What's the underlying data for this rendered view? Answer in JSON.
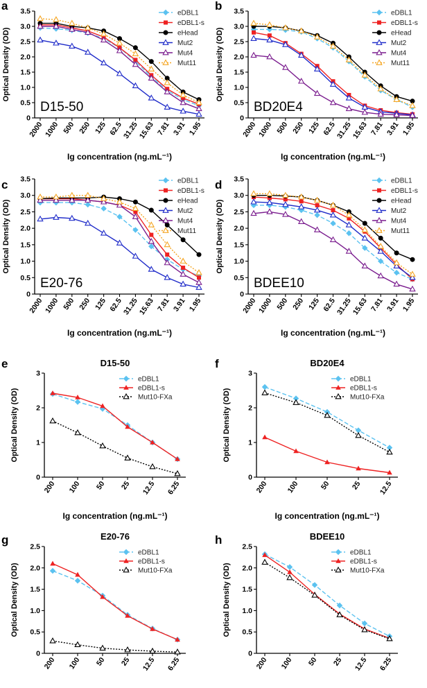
{
  "figure": {
    "panels": [
      {
        "letter": "a"
      },
      {
        "letter": "b"
      },
      {
        "letter": "c"
      },
      {
        "letter": "d"
      },
      {
        "letter": "e"
      },
      {
        "letter": "f"
      },
      {
        "letter": "g"
      },
      {
        "letter": "h"
      }
    ]
  },
  "colors": {
    "eDBL1": "#5bc2f0",
    "eDBL1-s": "#ee2222",
    "eHead": "#000000",
    "Mut2": "#1f2bc9",
    "Mut4": "#7a1c8e",
    "Mut11": "#f5a623",
    "Mut10-FXa": "#000000"
  },
  "chart_data": [
    {
      "panel": "a",
      "type": "line",
      "annotation": "D15-50",
      "categories": [
        "2000",
        "1000",
        "500",
        "250",
        "125",
        "62.5",
        "31.25",
        "15.63",
        "7.81",
        "3.91",
        "1.95"
      ],
      "xlabel": "Ig concentration (ng.mL⁻¹)",
      "ylabel": "Optical Density (OD)",
      "ylim": [
        0,
        3.5
      ],
      "yticks": [
        "0",
        "0.5",
        "1.0",
        "1.5",
        "2.0",
        "2.5",
        "3.0",
        "3.5"
      ],
      "legend_position": "top-right",
      "series": [
        {
          "name": "eDBL1",
          "marker": "diamond",
          "style": "dashed",
          "values": [
            2.95,
            2.92,
            2.87,
            2.78,
            2.6,
            2.3,
            1.85,
            1.35,
            0.9,
            0.6,
            0.4
          ]
        },
        {
          "name": "eDBL1-s",
          "marker": "square",
          "style": "solid",
          "values": [
            3.05,
            3.05,
            2.95,
            2.85,
            2.65,
            2.3,
            1.9,
            1.4,
            0.95,
            0.65,
            0.45
          ]
        },
        {
          "name": "eHead",
          "marker": "circle",
          "style": "solid",
          "values": [
            3.1,
            3.1,
            3.0,
            2.95,
            2.85,
            2.6,
            2.3,
            1.85,
            1.3,
            0.85,
            0.6
          ]
        },
        {
          "name": "Mut2",
          "marker": "triangle-open",
          "style": "solid",
          "values": [
            2.55,
            2.45,
            2.35,
            2.15,
            1.8,
            1.45,
            1.05,
            0.65,
            0.35,
            0.22,
            0.12
          ]
        },
        {
          "name": "Mut4",
          "marker": "triangle-open",
          "style": "solid",
          "values": [
            3.0,
            3.0,
            2.9,
            2.8,
            2.55,
            2.2,
            1.75,
            1.3,
            0.85,
            0.5,
            0.3
          ]
        },
        {
          "name": "Mut11",
          "marker": "triangle-open",
          "style": "dotted",
          "values": [
            3.25,
            3.22,
            3.1,
            2.95,
            2.75,
            2.45,
            2.1,
            1.6,
            1.15,
            0.75,
            0.5
          ]
        }
      ]
    },
    {
      "panel": "b",
      "type": "line",
      "annotation": "BD20E4",
      "categories": [
        "2000",
        "1000",
        "500",
        "250",
        "125",
        "62.5",
        "31.25",
        "15.63",
        "7.81",
        "3.91",
        "1.95"
      ],
      "xlabel": "Ig concentration (ng.mL⁻¹)",
      "ylabel": "Optical Density (OD)",
      "ylim": [
        0,
        3.5
      ],
      "yticks": [
        "0",
        "0.5",
        "1.0",
        "1.5",
        "2.0",
        "2.5",
        "3.0",
        "3.5"
      ],
      "legend_position": "top-right",
      "series": [
        {
          "name": "eDBL1",
          "marker": "diamond",
          "style": "dashed",
          "values": [
            2.9,
            2.9,
            2.88,
            2.82,
            2.6,
            2.3,
            1.85,
            1.35,
            0.9,
            0.6,
            0.35
          ]
        },
        {
          "name": "eDBL1-s",
          "marker": "square",
          "style": "solid",
          "values": [
            2.8,
            2.7,
            2.45,
            2.1,
            1.7,
            1.2,
            0.75,
            0.4,
            0.25,
            0.17,
            0.12
          ]
        },
        {
          "name": "eHead",
          "marker": "circle",
          "style": "solid",
          "values": [
            3.0,
            3.0,
            2.95,
            2.85,
            2.7,
            2.45,
            2.0,
            1.5,
            1.05,
            0.7,
            0.55
          ]
        },
        {
          "name": "Mut2",
          "marker": "triangle-open",
          "style": "solid",
          "values": [
            2.6,
            2.55,
            2.4,
            2.05,
            1.6,
            1.1,
            0.65,
            0.35,
            0.2,
            0.15,
            0.1
          ]
        },
        {
          "name": "Mut4",
          "marker": "triangle-open",
          "style": "solid",
          "values": [
            2.05,
            2.0,
            1.65,
            1.2,
            0.8,
            0.5,
            0.3,
            0.18,
            0.12,
            0.1,
            0.08
          ]
        },
        {
          "name": "Mut11",
          "marker": "triangle-open",
          "style": "dotted",
          "values": [
            3.1,
            3.05,
            2.95,
            2.85,
            2.65,
            2.35,
            1.9,
            1.4,
            0.95,
            0.6,
            0.4
          ]
        }
      ]
    },
    {
      "panel": "c",
      "type": "line",
      "annotation": "E20-76",
      "categories": [
        "2000",
        "1000",
        "500",
        "250",
        "125",
        "62.5",
        "31.25",
        "15.63",
        "7.81",
        "3.91",
        "1.95"
      ],
      "xlabel": "Ig concentration (ng.mL⁻¹)",
      "ylabel": "Optical Density (OD)",
      "ylim": [
        0,
        3.5
      ],
      "yticks": [
        "0",
        "0.5",
        "1.0",
        "1.5",
        "2.0",
        "2.5",
        "3.0",
        "3.5"
      ],
      "legend_position": "top-right",
      "series": [
        {
          "name": "eDBL1",
          "marker": "diamond",
          "style": "dashed",
          "values": [
            2.78,
            2.78,
            2.78,
            2.72,
            2.6,
            2.35,
            1.95,
            1.45,
            1.05,
            0.75,
            0.55
          ]
        },
        {
          "name": "eDBL1-s",
          "marker": "square",
          "style": "solid",
          "values": [
            2.9,
            2.9,
            2.9,
            2.85,
            2.8,
            2.7,
            2.5,
            1.8,
            1.2,
            0.8,
            0.5
          ]
        },
        {
          "name": "eHead",
          "marker": "circle",
          "style": "solid",
          "values": [
            2.9,
            2.92,
            2.92,
            2.92,
            2.95,
            2.9,
            2.8,
            2.55,
            2.1,
            1.65,
            1.2
          ]
        },
        {
          "name": "Mut2",
          "marker": "triangle-open",
          "style": "solid",
          "values": [
            2.28,
            2.33,
            2.3,
            2.15,
            1.85,
            1.55,
            1.15,
            0.75,
            0.5,
            0.3,
            0.2
          ]
        },
        {
          "name": "Mut4",
          "marker": "triangle-open",
          "style": "solid",
          "values": [
            2.85,
            2.85,
            2.85,
            2.85,
            2.8,
            2.7,
            2.35,
            1.6,
            0.95,
            0.6,
            0.35
          ]
        },
        {
          "name": "Mut11",
          "marker": "triangle-open",
          "style": "dotted",
          "values": [
            2.95,
            2.95,
            3.0,
            3.0,
            2.9,
            2.8,
            2.6,
            2.1,
            1.5,
            1.0,
            0.65
          ]
        }
      ]
    },
    {
      "panel": "d",
      "type": "line",
      "annotation": "BDEE10",
      "categories": [
        "2000",
        "1000",
        "500",
        "250",
        "125",
        "62.5",
        "31.25",
        "15.63",
        "7.81",
        "3.91",
        "1.95"
      ],
      "xlabel": "Ig concentration (ng.mL⁻¹)",
      "ylabel": "Optical Density (OD)",
      "ylim": [
        0,
        3.5
      ],
      "yticks": [
        "0",
        "0.5",
        "1.0",
        "1.5",
        "2.0",
        "2.5",
        "3.0",
        "3.5"
      ],
      "legend_position": "top-right",
      "series": [
        {
          "name": "eDBL1",
          "marker": "diamond",
          "style": "dashed",
          "values": [
            2.7,
            2.7,
            2.65,
            2.55,
            2.4,
            2.15,
            1.85,
            1.4,
            1.0,
            0.65,
            0.45
          ]
        },
        {
          "name": "eDBL1-s",
          "marker": "square",
          "style": "solid",
          "values": [
            2.95,
            2.92,
            2.88,
            2.82,
            2.7,
            2.55,
            2.3,
            1.9,
            1.4,
            0.9,
            0.45
          ]
        },
        {
          "name": "eHead",
          "marker": "circle",
          "style": "solid",
          "values": [
            3.0,
            3.0,
            2.98,
            2.95,
            2.85,
            2.7,
            2.5,
            2.15,
            1.7,
            1.25,
            1.05
          ]
        },
        {
          "name": "Mut2",
          "marker": "triangle-open",
          "style": "solid",
          "values": [
            2.8,
            2.78,
            2.72,
            2.65,
            2.55,
            2.4,
            2.1,
            1.7,
            1.3,
            0.85,
            0.5
          ]
        },
        {
          "name": "Mut4",
          "marker": "triangle-open",
          "style": "solid",
          "values": [
            2.45,
            2.5,
            2.42,
            2.2,
            1.95,
            1.65,
            1.3,
            0.85,
            0.55,
            0.3,
            0.15
          ]
        },
        {
          "name": "Mut11",
          "marker": "triangle-open",
          "style": "dotted",
          "values": [
            3.05,
            3.05,
            3.0,
            2.95,
            2.85,
            2.7,
            2.4,
            1.95,
            1.45,
            0.95,
            0.6
          ]
        }
      ]
    },
    {
      "panel": "e",
      "type": "line",
      "title": "D15-50",
      "categories": [
        "200",
        "100",
        "50",
        "25",
        "12.5",
        "6.25"
      ],
      "xlabel": "Ig concentration (ng.mL⁻¹)",
      "ylabel": "Optical Density (OD)",
      "ylim": [
        0,
        3
      ],
      "yticks": [
        "0",
        "1",
        "2",
        "3"
      ],
      "legend_position": "top-right",
      "series": [
        {
          "name": "eDBL1",
          "marker": "diamond",
          "style": "dashed",
          "values": [
            2.4,
            2.17,
            1.97,
            1.5,
            1.0,
            0.52
          ]
        },
        {
          "name": "eDBL1-s",
          "marker": "triangle",
          "style": "solid",
          "values": [
            2.42,
            2.3,
            2.05,
            1.45,
            1.0,
            0.52
          ]
        },
        {
          "name": "Mut10-FXa",
          "marker": "triangle-open",
          "style": "dotted",
          "values": [
            1.62,
            1.28,
            0.9,
            0.55,
            0.3,
            0.1
          ]
        }
      ]
    },
    {
      "panel": "f",
      "type": "line",
      "title": "BD20E4",
      "categories": [
        "200",
        "100",
        "50",
        "25",
        "12.5"
      ],
      "xlabel": "Ig concentration (ng.mL⁻¹)",
      "ylabel": "Optical Density (OD)",
      "ylim": [
        0,
        3
      ],
      "yticks": [
        "0",
        "1",
        "2",
        "3"
      ],
      "legend_position": "top-right",
      "series": [
        {
          "name": "eDBL1",
          "marker": "diamond",
          "style": "dashed",
          "values": [
            2.6,
            2.27,
            1.88,
            1.35,
            0.85
          ]
        },
        {
          "name": "eDBL1-s",
          "marker": "triangle",
          "style": "solid",
          "values": [
            1.15,
            0.75,
            0.43,
            0.25,
            0.13
          ]
        },
        {
          "name": "Mut10-FXa",
          "marker": "triangle-open",
          "style": "dotted",
          "values": [
            2.43,
            2.15,
            1.78,
            1.2,
            0.72
          ]
        }
      ]
    },
    {
      "panel": "g",
      "type": "line",
      "title": "E20-76",
      "categories": [
        "200",
        "100",
        "50",
        "25",
        "12.5",
        "6.25"
      ],
      "xlabel": "Ig concentration (ng.mL⁻¹)",
      "ylabel": "Optical Density (OD)",
      "ylim": [
        0,
        2.5
      ],
      "yticks": [
        "0",
        "0.5",
        "1.0",
        "1.5",
        "2.0",
        "2.5"
      ],
      "legend_position": "top-right",
      "series": [
        {
          "name": "eDBL1",
          "marker": "diamond",
          "style": "dashed",
          "values": [
            1.93,
            1.7,
            1.35,
            0.9,
            0.58,
            0.32
          ]
        },
        {
          "name": "eDBL1-s",
          "marker": "triangle",
          "style": "solid",
          "values": [
            2.1,
            1.84,
            1.32,
            0.88,
            0.57,
            0.32
          ]
        },
        {
          "name": "Mut10-FXa",
          "marker": "triangle-open",
          "style": "dotted",
          "values": [
            0.29,
            0.2,
            0.12,
            0.08,
            0.05,
            0.03
          ]
        }
      ]
    },
    {
      "panel": "h",
      "type": "line",
      "title": "BDEE10",
      "categories": [
        "200",
        "100",
        "50",
        "25",
        "12.5",
        "6.25"
      ],
      "xlabel": "Ig concentration (ng.mL⁻¹)",
      "ylabel": "Optical Density (OD)",
      "ylim": [
        0,
        2.5
      ],
      "yticks": [
        "0",
        "0.5",
        "1.0",
        "1.5",
        "2.0",
        "2.5"
      ],
      "legend_position": "top-right",
      "series": [
        {
          "name": "eDBL1",
          "marker": "diamond",
          "style": "dashed",
          "values": [
            2.32,
            2.02,
            1.6,
            1.12,
            0.7,
            0.4
          ]
        },
        {
          "name": "eDBL1-s",
          "marker": "triangle",
          "style": "solid",
          "values": [
            2.3,
            1.9,
            1.38,
            0.92,
            0.57,
            0.35
          ]
        },
        {
          "name": "Mut10-FXa",
          "marker": "triangle-open",
          "style": "dotted",
          "values": [
            2.13,
            1.77,
            1.36,
            0.9,
            0.55,
            0.34
          ]
        }
      ]
    }
  ]
}
